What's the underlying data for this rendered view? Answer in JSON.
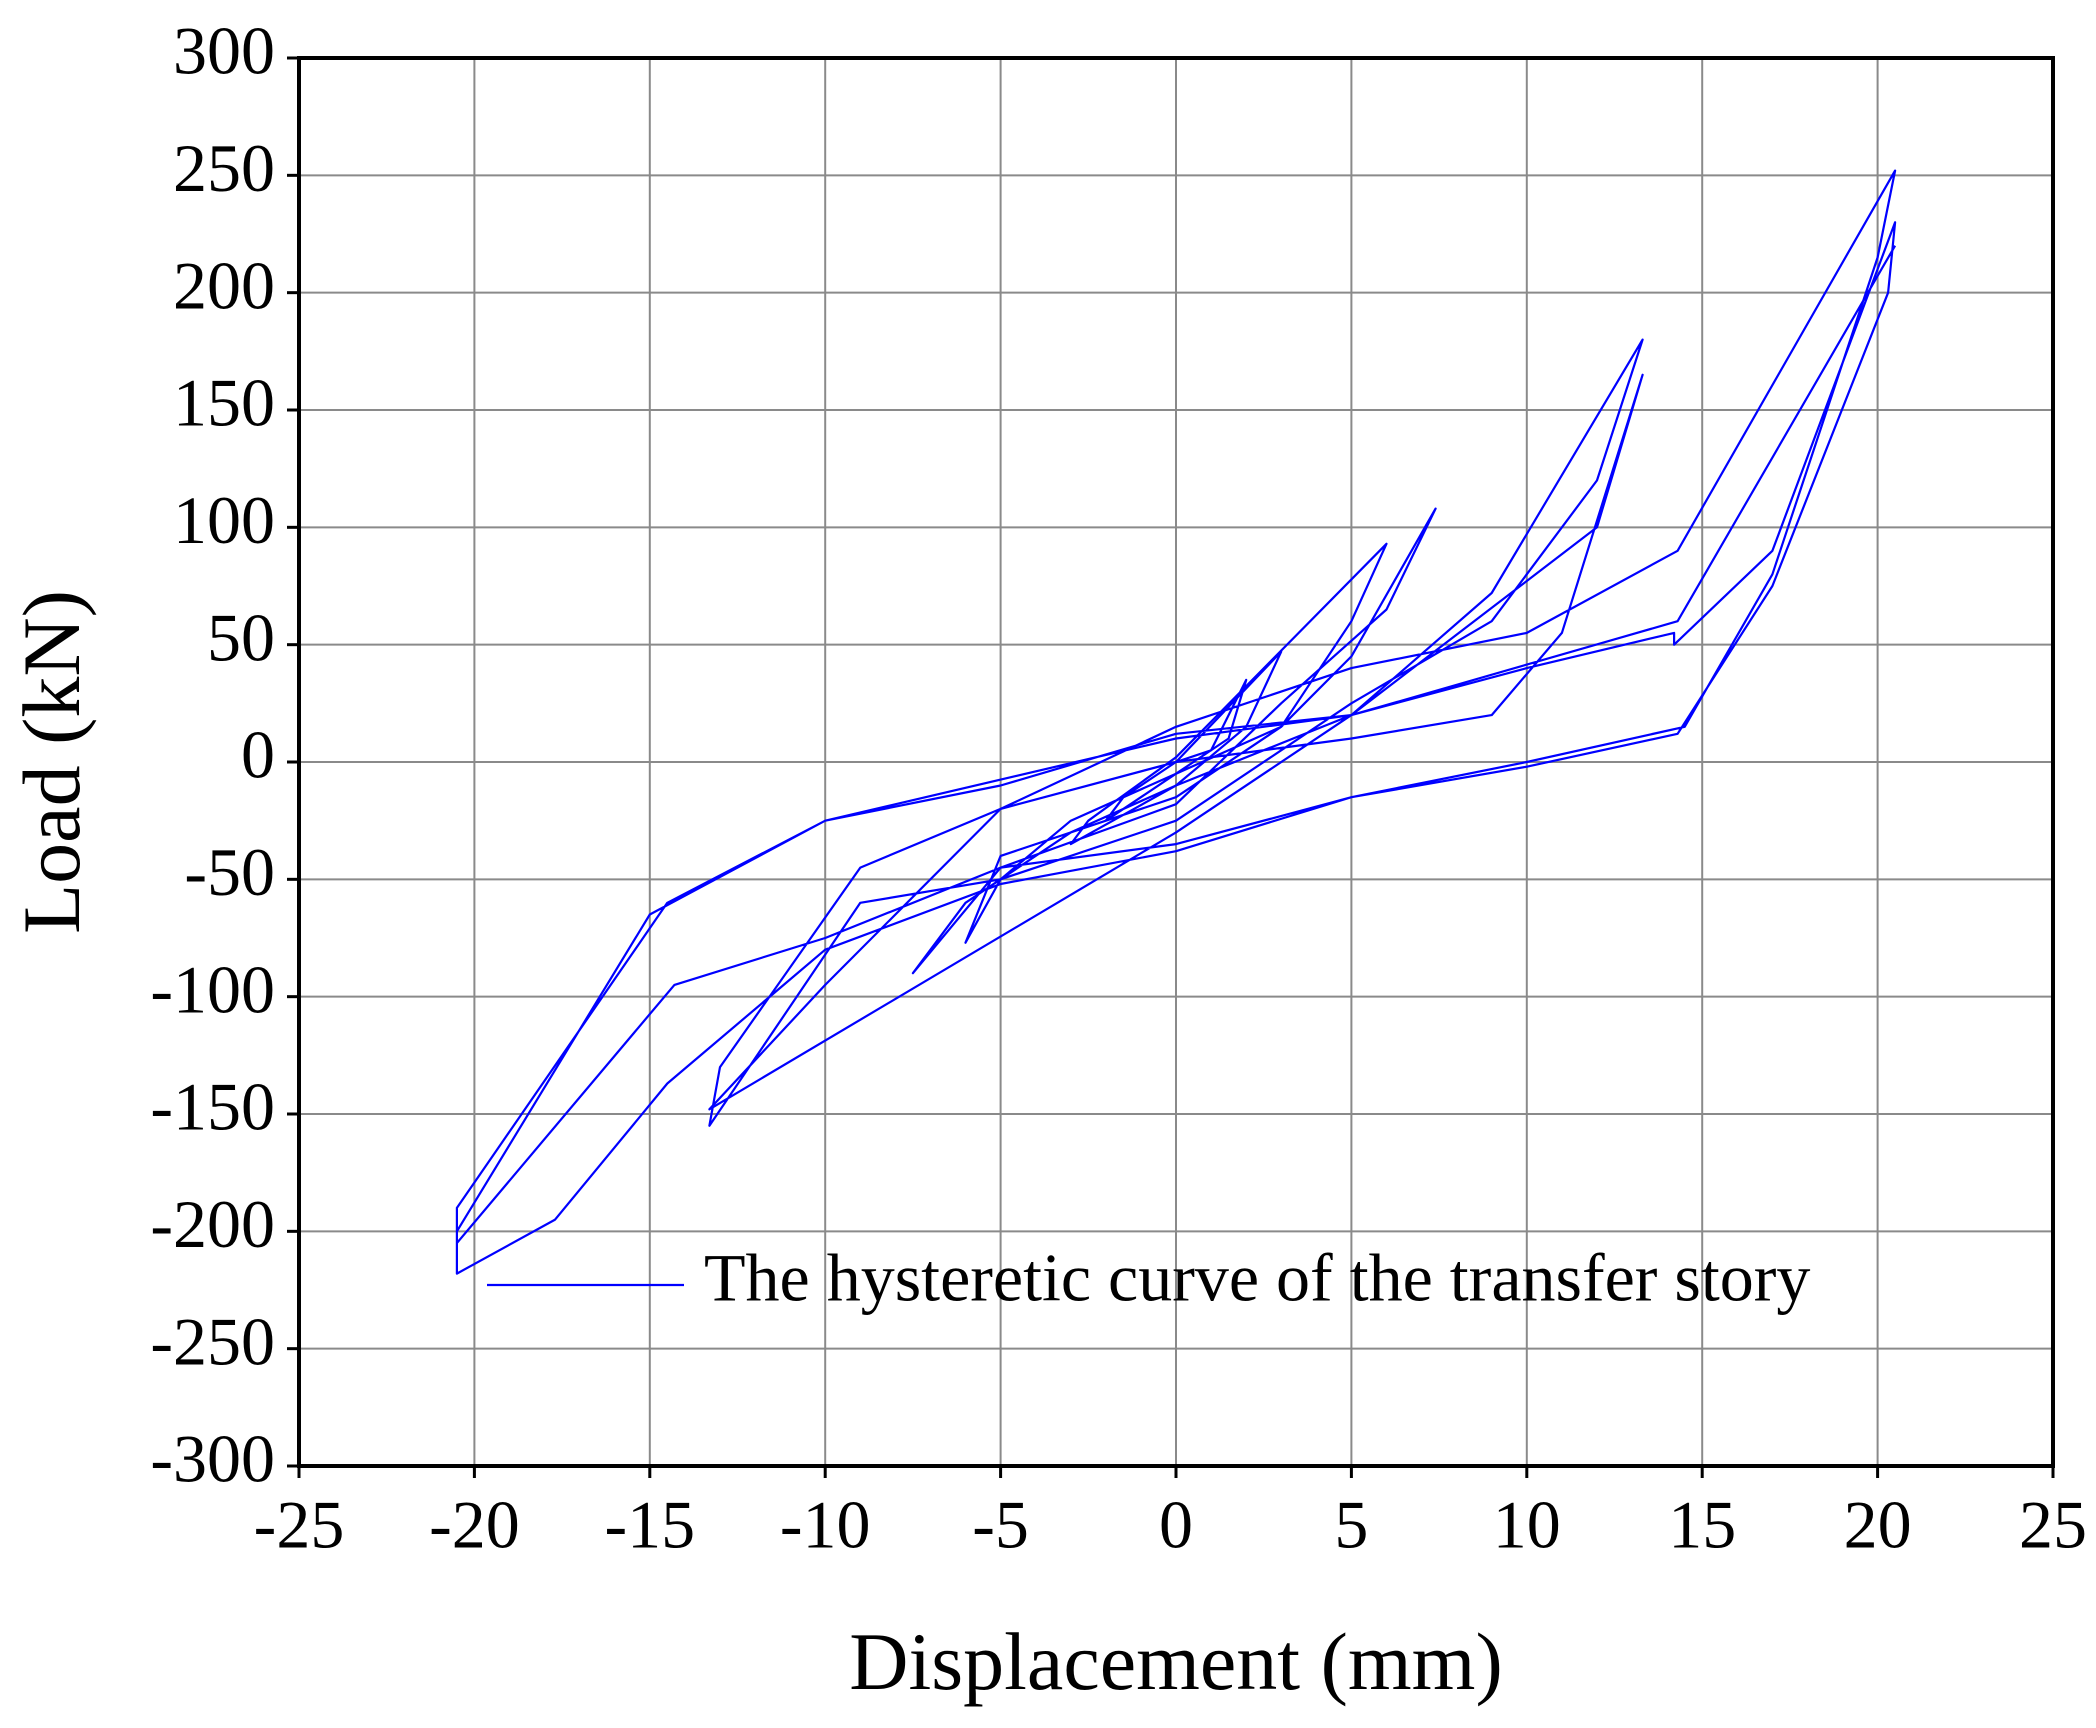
{
  "chart_data": {
    "type": "line",
    "x_label": "Displacement (mm)",
    "y_label": "Load (kN)",
    "xlim": [
      -25,
      25
    ],
    "xticks": [
      -25,
      -20,
      -15,
      -10,
      -5,
      0,
      5,
      10,
      15,
      20,
      25
    ],
    "ylim": [
      -300,
      300
    ],
    "yticks": [
      -300,
      -250,
      -200,
      -150,
      -100,
      -50,
      0,
      50,
      100,
      150,
      200,
      250,
      300
    ],
    "grid": true,
    "legend": "lower right",
    "x": [
      0,
      1,
      2,
      1.5,
      0,
      -1,
      -2,
      -1.5,
      0,
      3,
      2,
      0,
      -3,
      -2.5,
      0,
      6,
      5,
      3,
      0,
      -5,
      -6,
      -5,
      -3,
      0,
      3,
      5,
      7.4,
      6,
      3,
      0,
      -5,
      -7.5,
      -6,
      -3,
      0,
      5,
      9,
      13.3,
      12,
      9,
      5,
      0,
      -5,
      -9,
      -13.3,
      -13,
      -9,
      -5,
      0,
      5,
      9,
      11,
      13.3,
      12,
      5,
      0,
      -13.3,
      -10,
      -5,
      0,
      5,
      10,
      14.3,
      20.5,
      20,
      17,
      14.5,
      10,
      5,
      0,
      -5,
      -10,
      -14.5,
      -17.7,
      -20.5,
      -20.5,
      -15,
      -10,
      -5,
      0,
      5,
      10,
      14.2,
      14.2,
      17,
      20.5,
      20.3,
      17,
      14.3,
      10,
      5,
      0,
      -5,
      -10,
      -14.3,
      -20.5,
      -20.5,
      -14.5,
      -10,
      0,
      5,
      14.3,
      20.5
    ],
    "series": [
      {
        "name": "The hysteretic curve of the transfer story",
        "color": "#0000ff",
        "values": [
          0,
          5,
          35,
          10,
          -5,
          -15,
          -25,
          -15,
          0,
          47,
          15,
          -10,
          -35,
          -25,
          2,
          93,
          60,
          15,
          -15,
          -40,
          -77,
          -50,
          -25,
          -5,
          15,
          45,
          108,
          65,
          25,
          -18,
          -45,
          -90,
          -60,
          -30,
          -10,
          20,
          72,
          180,
          120,
          60,
          25,
          -25,
          -50,
          -60,
          -155,
          -130,
          -45,
          -20,
          0,
          10,
          20,
          55,
          165,
          100,
          20,
          -30,
          -148,
          -95,
          -20,
          15,
          40,
          55,
          90,
          252,
          215,
          80,
          15,
          0,
          -15,
          -38,
          -52,
          -80,
          -137,
          -195,
          -218,
          -200,
          -65,
          -25,
          -10,
          12,
          20,
          40,
          55,
          50,
          90,
          230,
          200,
          75,
          12,
          -2,
          -15,
          -35,
          -45,
          -75,
          -95,
          -205,
          -190,
          -60,
          -25,
          10,
          20,
          60,
          220
        ]
      }
    ]
  }
}
